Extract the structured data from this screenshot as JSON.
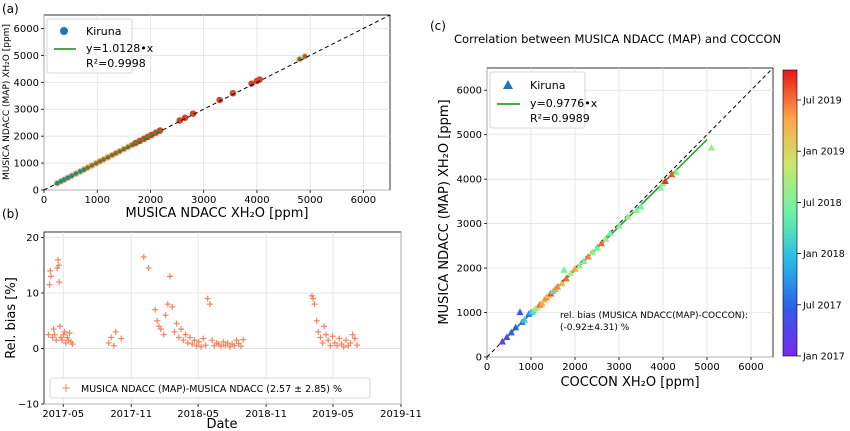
{
  "chart_data": [
    {
      "panel": "(a)",
      "type": "scatter",
      "title": "",
      "xlabel": "MUSICA NDACC XH₂O [ppm]",
      "ylabel": "MUSICA NDACC (MAP) XH₂O [ppm]",
      "xlim": [
        0,
        6500
      ],
      "ylim": [
        0,
        6500
      ],
      "xticks": [
        "0",
        "1000",
        "2000",
        "3000",
        "4000",
        "5000",
        "6000"
      ],
      "yticks": [
        "0",
        "1000",
        "2000",
        "3000",
        "4000",
        "5000",
        "6000"
      ],
      "legend": {
        "placement": "top-left",
        "series": "Kiruna",
        "fit": "y=1.0128•x",
        "r2": "R²=0.9998"
      },
      "fit_slope": 1.0128,
      "reference_line": "1:1 dashed",
      "series": [
        {
          "name": "Kiruna",
          "points": [
            [
              250,
              253
            ],
            [
              320,
              324
            ],
            [
              380,
              385
            ],
            [
              450,
              456
            ],
            [
              520,
              527
            ],
            [
              600,
              608
            ],
            [
              680,
              689
            ],
            [
              750,
              760
            ],
            [
              820,
              830
            ],
            [
              900,
              912
            ],
            [
              980,
              992
            ],
            [
              1050,
              1063
            ],
            [
              1120,
              1134
            ],
            [
              1200,
              1215
            ],
            [
              1280,
              1296
            ],
            [
              1350,
              1367
            ],
            [
              1420,
              1438
            ],
            [
              1500,
              1519
            ],
            [
              1580,
              1600
            ],
            [
              1650,
              1671
            ],
            [
              1720,
              1742
            ],
            [
              1800,
              1823
            ],
            [
              1880,
              1904
            ],
            [
              1950,
              1975
            ],
            [
              2020,
              2046
            ],
            [
              2100,
              2127
            ],
            [
              2180,
              2208
            ],
            [
              2550,
              2583
            ],
            [
              2650,
              2684
            ],
            [
              2800,
              2836
            ],
            [
              3300,
              3342
            ],
            [
              3550,
              3595
            ],
            [
              3900,
              3950
            ],
            [
              4000,
              4051
            ],
            [
              4050,
              4102
            ],
            [
              4800,
              4861
            ],
            [
              4900,
              4963
            ]
          ]
        }
      ]
    },
    {
      "panel": "(b)",
      "type": "scatter",
      "title": "",
      "xlabel": "Date",
      "ylabel": "Rel. bias [%]",
      "xlim": [
        "2017-03-10",
        "2019-11-01"
      ],
      "ylim": [
        -10,
        21
      ],
      "xticks": [
        "2017-05",
        "2017-11",
        "2018-05",
        "2018-11",
        "2019-05",
        "2019-11"
      ],
      "yticks": [
        "−10",
        "0",
        "10",
        "20"
      ],
      "legend": {
        "placement": "bottom-left",
        "label": "MUSICA NDACC (MAP)-MUSICA NDACC (2.57 ± 2.85) %"
      },
      "series": [
        {
          "name": "MUSICA NDACC (MAP)-MUSICA NDACC (2.57 ± 2.85) %",
          "points": [
            [
              "2017-03-22",
              2.5
            ],
            [
              "2017-03-25",
              11.5
            ],
            [
              "2017-03-27",
              14.0
            ],
            [
              "2017-03-29",
              13.0
            ],
            [
              "2017-04-02",
              2.0
            ],
            [
              "2017-04-05",
              3.5
            ],
            [
              "2017-04-08",
              2.5
            ],
            [
              "2017-04-12",
              1.5
            ],
            [
              "2017-04-15",
              14.5
            ],
            [
              "2017-04-17",
              16.0
            ],
            [
              "2017-04-19",
              15.0
            ],
            [
              "2017-04-20",
              12.0
            ],
            [
              "2017-04-22",
              4.0
            ],
            [
              "2017-04-25",
              2.0
            ],
            [
              "2017-04-28",
              1.5
            ],
            [
              "2017-05-02",
              2.5
            ],
            [
              "2017-05-05",
              3.0
            ],
            [
              "2017-05-08",
              1.0
            ],
            [
              "2017-05-12",
              2.0
            ],
            [
              "2017-05-15",
              1.5
            ],
            [
              "2017-05-18",
              2.8
            ],
            [
              "2017-05-22",
              1.2
            ],
            [
              "2017-05-26",
              0.8
            ],
            [
              "2017-09-01",
              1.0
            ],
            [
              "2017-09-08",
              2.0
            ],
            [
              "2017-09-15",
              0.5
            ],
            [
              "2017-09-20",
              3.0
            ],
            [
              "2017-10-05",
              1.8
            ],
            [
              "2017-12-05",
              16.5
            ],
            [
              "2017-12-18",
              14.5
            ],
            [
              "2018-01-05",
              7.0
            ],
            [
              "2018-01-10",
              5.0
            ],
            [
              "2018-01-15",
              4.0
            ],
            [
              "2018-01-20",
              3.5
            ],
            [
              "2018-01-28",
              2.5
            ],
            [
              "2018-02-02",
              6.0
            ],
            [
              "2018-02-08",
              8.0
            ],
            [
              "2018-02-14",
              13.0
            ],
            [
              "2018-02-20",
              7.5
            ],
            [
              "2018-02-26",
              3.0
            ],
            [
              "2018-03-04",
              4.5
            ],
            [
              "2018-03-10",
              2.0
            ],
            [
              "2018-03-16",
              3.5
            ],
            [
              "2018-03-22",
              1.5
            ],
            [
              "2018-03-28",
              2.5
            ],
            [
              "2018-04-03",
              1.0
            ],
            [
              "2018-04-09",
              2.0
            ],
            [
              "2018-04-15",
              0.8
            ],
            [
              "2018-04-21",
              1.5
            ],
            [
              "2018-04-27",
              0.5
            ],
            [
              "2018-05-03",
              1.2
            ],
            [
              "2018-05-09",
              0.3
            ],
            [
              "2018-05-15",
              1.8
            ],
            [
              "2018-05-21",
              0.6
            ],
            [
              "2018-05-27",
              9.0
            ],
            [
              "2018-06-02",
              8.0
            ],
            [
              "2018-06-08",
              1.5
            ],
            [
              "2018-06-14",
              0.5
            ],
            [
              "2018-06-20",
              1.0
            ],
            [
              "2018-06-26",
              0.8
            ],
            [
              "2018-07-02",
              0.4
            ],
            [
              "2018-07-08",
              1.2
            ],
            [
              "2018-07-14",
              0.6
            ],
            [
              "2018-07-20",
              1.0
            ],
            [
              "2018-07-26",
              0.3
            ],
            [
              "2018-08-01",
              0.8
            ],
            [
              "2018-08-07",
              0.5
            ],
            [
              "2018-08-13",
              1.5
            ],
            [
              "2018-08-19",
              0.9
            ],
            [
              "2018-08-25",
              0.4
            ],
            [
              "2018-08-31",
              1.6
            ],
            [
              "2019-03-05",
              9.5
            ],
            [
              "2019-03-08",
              9.0
            ],
            [
              "2019-03-12",
              8.0
            ],
            [
              "2019-03-18",
              5.0
            ],
            [
              "2019-03-22",
              3.0
            ],
            [
              "2019-03-28",
              2.0
            ],
            [
              "2019-04-03",
              1.0
            ],
            [
              "2019-04-07",
              4.0
            ],
            [
              "2019-04-12",
              2.5
            ],
            [
              "2019-04-18",
              1.5
            ],
            [
              "2019-04-24",
              0.5
            ],
            [
              "2019-04-30",
              2.2
            ],
            [
              "2019-05-06",
              1.0
            ],
            [
              "2019-05-12",
              0.5
            ],
            [
              "2019-05-18",
              1.8
            ],
            [
              "2019-05-24",
              0.8
            ],
            [
              "2019-05-30",
              0.3
            ],
            [
              "2019-06-05",
              1.5
            ],
            [
              "2019-06-11",
              0.5
            ],
            [
              "2019-06-17",
              1.0
            ],
            [
              "2019-06-23",
              2.5
            ],
            [
              "2019-06-29",
              1.8
            ],
            [
              "2019-07-05",
              0.6
            ]
          ]
        }
      ]
    },
    {
      "panel": "(c)",
      "type": "scatter",
      "title": "Correlation between MUSICA NDACC (MAP) and COCCON",
      "xlabel": "COCCON XH₂O [ppm]",
      "ylabel": "MUSICA NDACC (MAP) XH₂O [ppm]",
      "xlim": [
        0,
        6500
      ],
      "ylim": [
        0,
        6500
      ],
      "xticks": [
        "0",
        "1000",
        "2000",
        "3000",
        "4000",
        "5000",
        "6000"
      ],
      "yticks": [
        "0",
        "1000",
        "2000",
        "3000",
        "4000",
        "5000",
        "6000"
      ],
      "legend": {
        "placement": "top-left",
        "series": "Kiruna",
        "fit": "y=0.9776•x",
        "r2": "R²=0.9989"
      },
      "fit_slope": 0.9776,
      "reference_line": "1:1 dashed",
      "annotation": [
        "rel. bias (MUSICA NDACC(MAP)-COCCON):",
        "(-0.92±4.31) %"
      ],
      "colorbar": {
        "ticks": [
          "Jan 2017",
          "Jul 2017",
          "Jan 2018",
          "Jul 2018",
          "Jan 2019",
          "Jul 2019"
        ],
        "range": [
          0,
          31
        ]
      },
      "series": [
        {
          "name": "Kiruna",
          "points": [
            [
              350,
              340,
              2
            ],
            [
              450,
              440,
              3
            ],
            [
              550,
              545,
              4
            ],
            [
              650,
              660,
              5
            ],
            [
              750,
              1000,
              4
            ],
            [
              800,
              780,
              6
            ],
            [
              850,
              830,
              12
            ],
            [
              950,
              960,
              6
            ],
            [
              1000,
              1000,
              10
            ],
            [
              1050,
              1020,
              14
            ],
            [
              1100,
              1080,
              18
            ],
            [
              1150,
              1120,
              20
            ],
            [
              1200,
              1170,
              28
            ],
            [
              1250,
              1200,
              26
            ],
            [
              1300,
              1280,
              24
            ],
            [
              1350,
              1330,
              27
            ],
            [
              1400,
              1380,
              22
            ],
            [
              1450,
              1420,
              29
            ],
            [
              1500,
              1470,
              14
            ],
            [
              1550,
              1520,
              26
            ],
            [
              1600,
              1570,
              27
            ],
            [
              1700,
              1650,
              25
            ],
            [
              1750,
              1950,
              16
            ],
            [
              1800,
              1760,
              28
            ],
            [
              1900,
              1880,
              20
            ],
            [
              2000,
              1980,
              26
            ],
            [
              2100,
              2050,
              18
            ],
            [
              2200,
              2150,
              16
            ],
            [
              2300,
              2250,
              27
            ],
            [
              2400,
              2350,
              18
            ],
            [
              2500,
              2450,
              16
            ],
            [
              2600,
              2550,
              28
            ],
            [
              2700,
              2650,
              18
            ],
            [
              2800,
              2780,
              16
            ],
            [
              3000,
              2950,
              17
            ],
            [
              3200,
              3150,
              18
            ],
            [
              3400,
              3300,
              17
            ],
            [
              3500,
              3380,
              16
            ],
            [
              3950,
              3800,
              17
            ],
            [
              4000,
              3900,
              18
            ],
            [
              4050,
              3950,
              30
            ],
            [
              4200,
              4100,
              29
            ],
            [
              4300,
              4150,
              18
            ],
            [
              5100,
              4700,
              18
            ]
          ]
        }
      ]
    }
  ],
  "panel_a": {
    "label": "(a)",
    "xlabel": "MUSICA NDACC XH₂O [ppm]",
    "ylabel": "MUSICA NDACC (MAP) XH₂O [ppm]",
    "legend_series": "Kiruna",
    "legend_fit": "y=1.0128•x",
    "legend_r2": "R²=0.9998"
  },
  "panel_b": {
    "label": "(b)",
    "xlabel": "Date",
    "ylabel": "Rel. bias [%]",
    "legend_label": "MUSICA NDACC (MAP)-MUSICA NDACC (2.57 ± 2.85) %"
  },
  "panel_c": {
    "label": "(c)",
    "title": "Correlation between MUSICA NDACC (MAP) and COCCON",
    "xlabel": "COCCON XH₂O [ppm]",
    "ylabel": "MUSICA NDACC (MAP) XH₂O [ppm]",
    "legend_series": "Kiruna",
    "legend_fit": "y=0.9776•x",
    "legend_r2": "R²=0.9989",
    "annotation_line1": "rel. bias (MUSICA NDACC(MAP)-COCCON):",
    "annotation_line2": "(-0.92±4.31) %"
  },
  "colors": {
    "kiruna_marker": "#1f77b4",
    "fit_line": "#2ca02c",
    "bias_marker": "#f4845f",
    "a_trail_low": "#f5a26a",
    "a_trail_high": "#7ff08a",
    "a_dots": "#d9432a"
  }
}
